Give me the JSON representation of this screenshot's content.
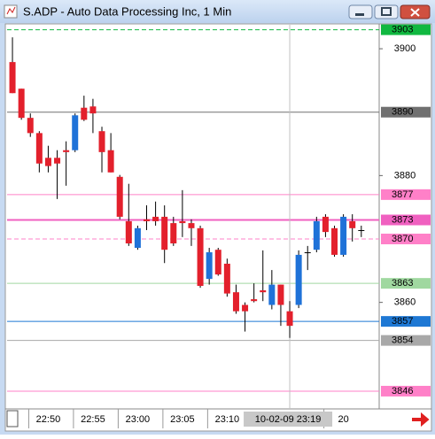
{
  "window": {
    "title": "S.ADP - Auto Data Processing Inc, 1 Min"
  },
  "chart_data": {
    "type": "candlestick",
    "open": [
      3897.9,
      3893.7,
      3889.1,
      3886.7,
      3882.8,
      3882.8,
      3884.0,
      3884.0,
      3890.7,
      3890.9,
      3887.0,
      3884.0,
      3879.8,
      3872.8,
      3868.6,
      3873.1,
      3873.5,
      3873.5,
      3872.5,
      3872.8,
      3872.5,
      3871.7,
      3863.7,
      3868.3,
      3866.1,
      3861.6,
      3859.6,
      3860.5,
      3861.9,
      3859.6,
      3862.8,
      3858.6,
      3859.6,
      3867.9,
      3868.3,
      3873.5,
      3871.7,
      3867.5,
      3872.8,
      3871.4
    ],
    "high": [
      3901.8,
      3893.7,
      3889.8,
      3887.0,
      3884.7,
      3884.0,
      3885.4,
      3889.8,
      3892.6,
      3892.1,
      3887.7,
      3886.7,
      3880.1,
      3878.7,
      3872.1,
      3875.3,
      3875.9,
      3875.3,
      3873.5,
      3877.7,
      3873.1,
      3872.1,
      3868.6,
      3868.6,
      3866.9,
      3862.8,
      3860.0,
      3863.0,
      3868.2,
      3865.1,
      3862.8,
      3860.2,
      3868.2,
      3868.9,
      3873.5,
      3873.9,
      3872.1,
      3873.9,
      3873.9,
      3872.1
    ],
    "low": [
      3893.0,
      3888.8,
      3886.1,
      3880.5,
      3880.5,
      3876.3,
      3878.4,
      3883.7,
      3888.6,
      3886.7,
      3880.5,
      3880.5,
      3873.1,
      3868.9,
      3868.3,
      3871.4,
      3872.1,
      3866.2,
      3868.9,
      3870.3,
      3868.9,
      3862.3,
      3862.8,
      3864.2,
      3860.9,
      3858.2,
      3855.4,
      3860.0,
      3860.2,
      3858.9,
      3856.3,
      3854.4,
      3859.1,
      3865.1,
      3867.9,
      3870.3,
      3867.2,
      3867.2,
      3869.6,
      3870.3
    ],
    "close": [
      3893.0,
      3889.1,
      3886.7,
      3881.9,
      3881.5,
      3881.9,
      3883.7,
      3889.5,
      3888.8,
      3889.8,
      3883.7,
      3880.5,
      3873.5,
      3869.3,
      3871.7,
      3872.8,
      3872.8,
      3868.3,
      3869.3,
      3872.5,
      3871.7,
      3862.6,
      3867.9,
      3864.4,
      3861.4,
      3858.6,
      3858.6,
      3860.2,
      3861.6,
      3862.8,
      3859.6,
      3856.3,
      3867.5,
      3867.9,
      3872.8,
      3871.1,
      3867.5,
      3873.5,
      3871.7,
      3871.4
    ],
    "up_color": "#1f72d8",
    "down_color": "#e3202c",
    "flat_color": "#000000",
    "ylim": [
      3843.2,
      3903.5
    ],
    "yticks": [
      3900,
      3880,
      3860
    ],
    "xlim": [
      -0.6,
      41
    ],
    "xticks": [
      {
        "value": 4,
        "label": "22:50"
      },
      {
        "value": 9,
        "label": "22:55"
      },
      {
        "value": 14,
        "label": "23:00"
      },
      {
        "value": 19,
        "label": "23:05"
      },
      {
        "value": 24,
        "label": "23:10"
      },
      {
        "value": 37,
        "label": "20"
      }
    ],
    "cursor": {
      "value": 31,
      "label": "10-02-09 23:19"
    },
    "levels": [
      {
        "value": 3903,
        "color": "#10b840",
        "dashed": true
      },
      {
        "value": 3890,
        "color": "#707070",
        "dashed": false
      },
      {
        "value": 3877,
        "color": "#ff80c8",
        "dashed": false
      },
      {
        "value": 3873,
        "color": "#f060c0",
        "dashed": false
      },
      {
        "value": 3870,
        "color": "#ff80c8",
        "dashed": true
      },
      {
        "value": 3863,
        "color": "#a0d8a0",
        "dashed": false
      },
      {
        "value": 3857,
        "color": "#1e78d4",
        "dashed": false
      },
      {
        "value": 3854,
        "color": "#a8a8a8",
        "dashed": false
      },
      {
        "value": 3846,
        "color": "#ff80c8",
        "dashed": false
      }
    ]
  }
}
